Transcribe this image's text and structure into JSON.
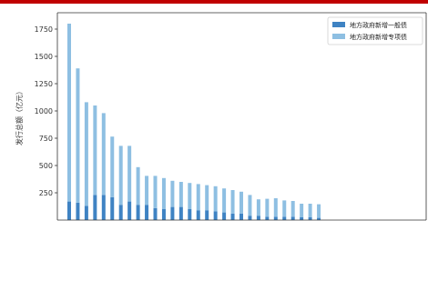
{
  "chart_data": {
    "type": "bar",
    "stacked": true,
    "ylabel": "发行总额（亿元）",
    "ylim": [
      0,
      1900
    ],
    "yticks": [
      250,
      500,
      750,
      1000,
      1250,
      1500,
      1750
    ],
    "grid": false,
    "legend_position": "top-right",
    "series": [
      {
        "name": "地方政府新增一般债",
        "color": "#3f83c3",
        "values": [
          170,
          160,
          130,
          230,
          230,
          210,
          140,
          170,
          140,
          140,
          110,
          100,
          120,
          120,
          100,
          90,
          90,
          80,
          70,
          60,
          60,
          40,
          40,
          30,
          30,
          30,
          30,
          25,
          25,
          20
        ]
      },
      {
        "name": "地方政府新增专项债",
        "color": "#8ebfe2",
        "values": [
          1630,
          1230,
          950,
          820,
          750,
          555,
          540,
          510,
          345,
          265,
          295,
          285,
          240,
          230,
          240,
          240,
          230,
          230,
          220,
          215,
          200,
          190,
          150,
          165,
          170,
          150,
          145,
          125,
          125,
          125
        ]
      }
    ]
  },
  "legend": {
    "items": [
      "地方政府新增一般债",
      "地方政府新增专项债"
    ]
  }
}
